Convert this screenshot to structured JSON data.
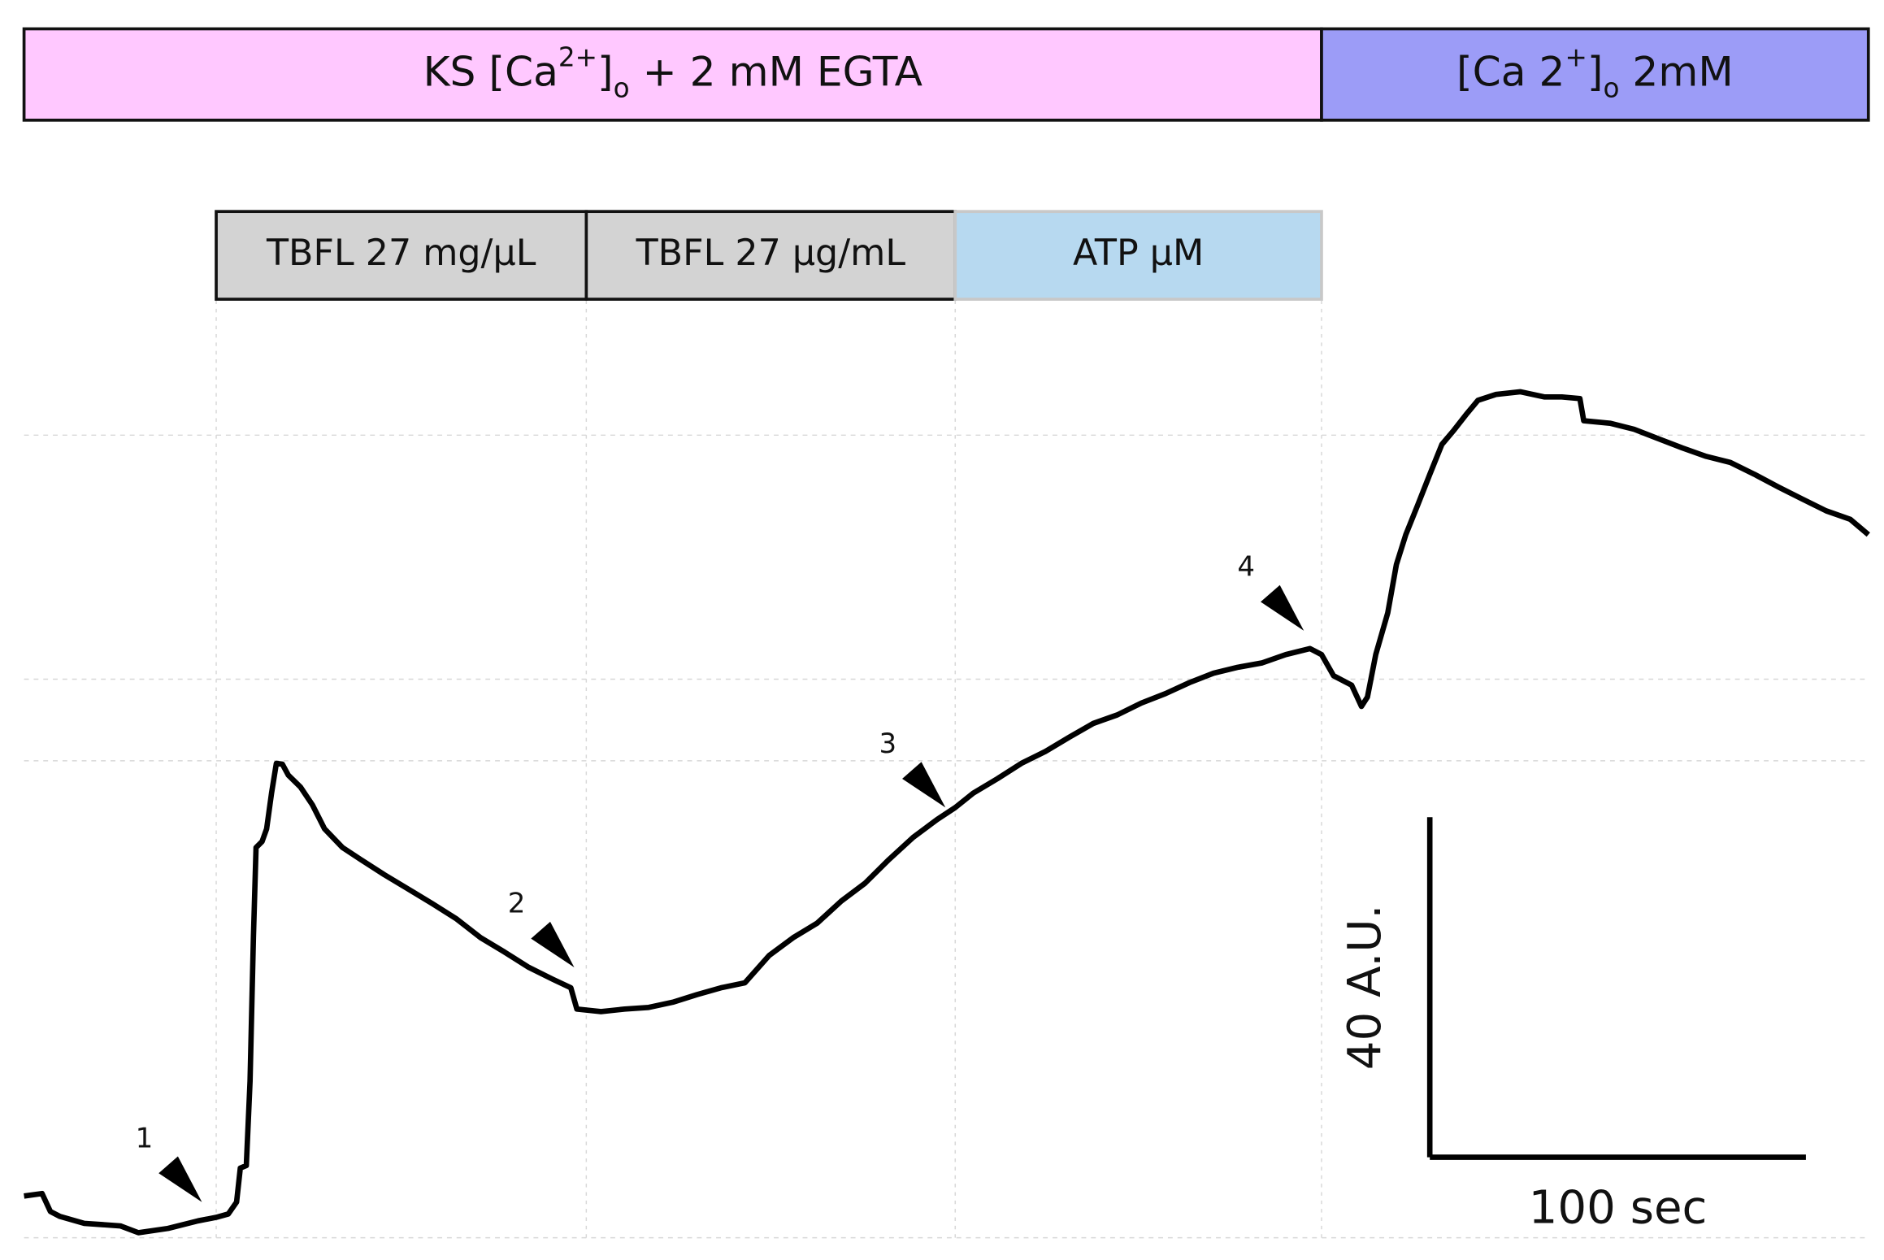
{
  "chart_data": {
    "type": "line",
    "xlim": [
      0,
      490.4
    ],
    "ylim": [
      0,
      110
    ],
    "xgrid": [
      51.1,
      149.5,
      247.6,
      345.0
    ],
    "ygrid": [
      94.4,
      65.7,
      56.1,
      0
    ],
    "solutions": [
      {
        "start": 0,
        "end": 345.0,
        "color": "#ffc8ff",
        "border": "#111111",
        "label": [
          {
            "text": "KS [Ca"
          },
          {
            "text": "2+",
            "script": "super"
          },
          {
            "text": "]"
          },
          {
            "text": "o",
            "script": "sub"
          },
          {
            "text": " + 2 mM EGTA"
          }
        ]
      },
      {
        "start": 345.0,
        "end": 490.4,
        "color": "#9c9cf7",
        "border": "#111111",
        "label": [
          {
            "text": "[Ca 2"
          },
          {
            "text": "+",
            "script": "super"
          },
          {
            "text": "]"
          },
          {
            "text": "o",
            "script": "sub"
          },
          {
            "text": " 2mM"
          }
        ]
      }
    ],
    "treatments": [
      {
        "start": 51.1,
        "end": 149.5,
        "color": "#d3d3d3",
        "border": "#111111",
        "label": [
          {
            "text": "TBFL 27 mg/μL"
          }
        ]
      },
      {
        "start": 149.5,
        "end": 247.6,
        "color": "#d3d3d3",
        "border": "#111111",
        "label": [
          {
            "text": "TBFL 27 μg/mL"
          }
        ]
      },
      {
        "start": 247.6,
        "end": 345.0,
        "color": "#b7d9f0",
        "border": "#c8c8c8",
        "label": [
          {
            "text": "ATP μM"
          }
        ]
      }
    ],
    "series": [
      {
        "color": "#000000",
        "x": [
          0,
          4.8,
          7.0,
          9.6,
          16.0,
          25.6,
          30.4,
          38.3,
          46.3,
          51.1,
          54.3,
          56.5,
          57.5,
          59.1,
          60.1,
          61.0,
          61.7,
          63.3,
          64.5,
          65.8,
          67.1,
          68.7,
          70.3,
          73.5,
          76.7,
          79.9,
          84.7,
          89.5,
          95.8,
          102.2,
          108.6,
          115.0,
          121.4,
          127.8,
          134.2,
          140.6,
          145.4,
          147.0,
          153.4,
          159.7,
          166.1,
          172.5,
          178.9,
          185.3,
          191.7,
          198.1,
          204.5,
          210.9,
          217.3,
          223.6,
          230.0,
          236.4,
          242.8,
          247.6,
          252.4,
          258.8,
          265.2,
          271.6,
          278.0,
          284.3,
          290.7,
          297.1,
          303.5,
          309.9,
          316.3,
          322.7,
          329.1,
          335.5,
          341.9,
          345.0,
          348.2,
          353.0,
          355.6,
          357.2,
          359.4,
          362.6,
          364.9,
          367.4,
          370.6,
          373.8,
          377.0,
          380.2,
          383.4,
          386.6,
          391.4,
          397.8,
          404.2,
          408.9,
          413.7,
          414.7,
          421.7,
          428.1,
          434.5,
          440.9,
          447.3,
          453.7,
          460.1,
          466.5,
          472.8,
          479.2,
          485.6,
          490.4
        ],
        "values": [
          4.9,
          5.2,
          3.1,
          2.5,
          1.7,
          1.4,
          0.6,
          1.1,
          2.0,
          2.4,
          2.8,
          4.2,
          8.2,
          8.5,
          18.4,
          35.3,
          45.9,
          46.6,
          48.1,
          52.3,
          55.8,
          55.7,
          54.4,
          53.0,
          50.9,
          48.1,
          45.9,
          44.5,
          42.7,
          41.0,
          39.3,
          37.5,
          35.3,
          33.6,
          31.8,
          30.4,
          29.4,
          26.9,
          26.6,
          26.9,
          27.1,
          27.7,
          28.6,
          29.4,
          30.0,
          33.2,
          35.3,
          37.0,
          39.6,
          41.7,
          44.5,
          47.1,
          49.2,
          50.6,
          52.3,
          54.0,
          55.8,
          57.2,
          58.9,
          60.5,
          61.5,
          62.9,
          64.0,
          65.3,
          66.4,
          67.1,
          67.6,
          68.6,
          69.3,
          68.6,
          66.1,
          65.0,
          62.5,
          63.6,
          68.6,
          73.5,
          79.2,
          82.7,
          86.2,
          89.8,
          93.3,
          95.0,
          96.8,
          98.5,
          99.2,
          99.5,
          98.9,
          98.9,
          98.7,
          96.1,
          95.8,
          95.1,
          94.0,
          92.9,
          91.9,
          91.2,
          89.8,
          88.3,
          86.9,
          85.5,
          84.5,
          82.7
        ]
      }
    ],
    "annotations": [
      {
        "text": "1",
        "x": 47.3,
        "y": 4.2
      },
      {
        "text": "2",
        "x": 146.3,
        "y": 31.8
      },
      {
        "text": "3",
        "x": 245.0,
        "y": 50.6
      },
      {
        "text": "4",
        "x": 340.3,
        "y": 71.4
      }
    ],
    "scale_bar": {
      "x": {
        "value": 100,
        "label": "100 sec"
      },
      "y": {
        "value": 40,
        "label": "40 A.U."
      }
    }
  }
}
